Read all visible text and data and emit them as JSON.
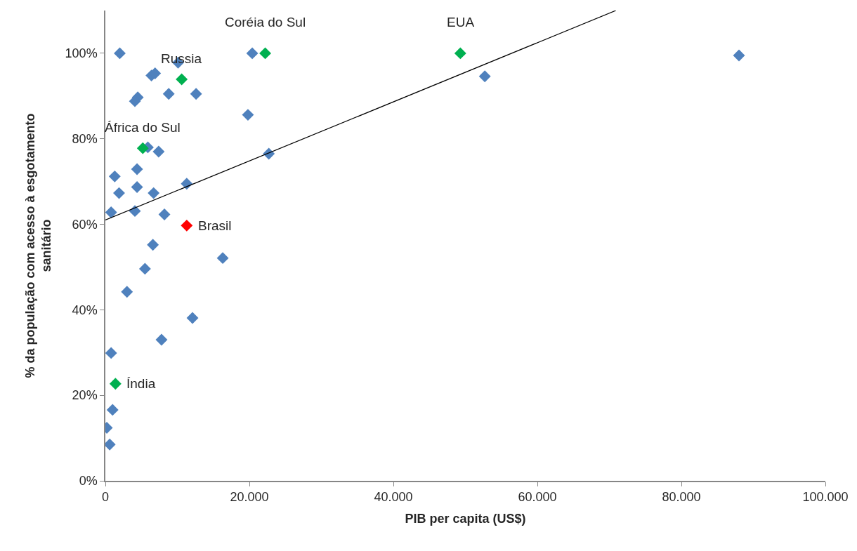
{
  "chart_data": {
    "type": "scatter",
    "xlabel": "PIB per capita (US$)",
    "ylabel": "% da população com acesso à esgotamento sanitário",
    "xlim": [
      0,
      100000
    ],
    "xticks": [
      {
        "value": 0,
        "label": "0"
      },
      {
        "value": 20000,
        "label": "20.000"
      },
      {
        "value": 40000,
        "label": "40.000"
      },
      {
        "value": 60000,
        "label": "60.000"
      },
      {
        "value": 80000,
        "label": "80.000"
      },
      {
        "value": 100000,
        "label": "100.000"
      }
    ],
    "ylim": [
      0,
      110
    ],
    "yticks": [
      {
        "value": 0,
        "label": "0%"
      },
      {
        "value": 20,
        "label": "20%"
      },
      {
        "value": 40,
        "label": "40%"
      },
      {
        "value": 60,
        "label": "60%"
      },
      {
        "value": 80,
        "label": "80%"
      },
      {
        "value": 100,
        "label": "100%"
      }
    ],
    "marker": "diamond",
    "series": [
      {
        "color": "#4f81bd",
        "x": [
          2000,
          10100,
          6400,
          6900,
          4500,
          4100,
          8800,
          12600,
          19800,
          20400,
          5900,
          7400,
          22700,
          1300,
          4400,
          1900,
          4400,
          6700,
          11300,
          800,
          4100,
          8200,
          6600,
          16300,
          5500,
          3000,
          12100,
          7800,
          800,
          1000,
          200,
          600,
          52700,
          88000
        ],
        "values": [
          100,
          97.8,
          94.8,
          95.3,
          89.7,
          88.8,
          90.5,
          90.5,
          85.6,
          100,
          78,
          77,
          76.5,
          71.2,
          72.9,
          67.3,
          68.7,
          67.3,
          69.5,
          62.8,
          63.1,
          62.3,
          55.2,
          52.1,
          49.6,
          44.2,
          38.1,
          33,
          29.9,
          16.6,
          12.4,
          8.5,
          94.6,
          99.5
        ]
      },
      {
        "color": "#00b050",
        "x": [
          10600,
          22200,
          5200,
          49300,
          1400
        ],
        "values": [
          93.9,
          100,
          77.8,
          100,
          22.7
        ]
      },
      {
        "color": "#ff0000",
        "x": [
          11300
        ],
        "values": [
          59.7
        ]
      },
      {
        "type": "line",
        "color": "#000000",
        "marker": "none",
        "x": [
          0,
          70900
        ],
        "values": [
          61,
          110
        ]
      }
    ],
    "annotations": [
      {
        "text": "Russia",
        "x": 10600,
        "y": 93.9
      },
      {
        "text": "Coréia do Sul",
        "x": 22200,
        "y": 100
      },
      {
        "text": "EUA",
        "x": 49300,
        "y": 100
      },
      {
        "text": "África do Sul",
        "x": 5200,
        "y": 77.8
      },
      {
        "text": "Brasil",
        "x": 11300,
        "y": 59.7
      },
      {
        "text": "Índia",
        "x": 1400,
        "y": 22.7
      }
    ]
  }
}
